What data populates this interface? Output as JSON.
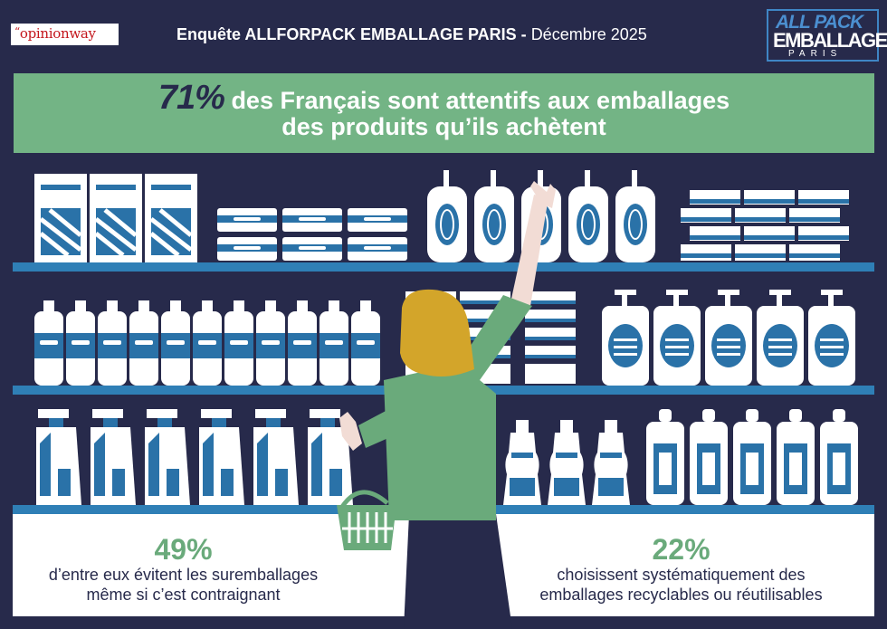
{
  "header": {
    "opinionway_logo": "opinionway",
    "title_bold": "Enquête ALLFORPACK EMBALLAGE PARIS -",
    "title_date": "Décembre 2025",
    "allforpack_logo": {
      "line1": "ALL PACK",
      "line2": "EMBALLAGE",
      "line3": "PARIS"
    }
  },
  "headline": {
    "stat": "71%",
    "line1_rest": "des Français sont attentifs aux emballages",
    "line2": "des produits qu’ils achètent"
  },
  "stats": [
    {
      "value": "49%",
      "line1": "d’entre eux évitent les suremballages",
      "line2": "même si c’est contraignant"
    },
    {
      "value": "22%",
      "line1": "choisissent systématiquement des",
      "line2": "emballages recyclables ou réutilisables"
    }
  ],
  "colors": {
    "background": "#272a4b",
    "banner_green": "#73b485",
    "accent_green": "#6aaa7b",
    "shelf_blue": "#2f7fb6",
    "product_blue": "#2a72a8",
    "hair": "#d3a52a",
    "shirt": "#6aaa7b"
  }
}
